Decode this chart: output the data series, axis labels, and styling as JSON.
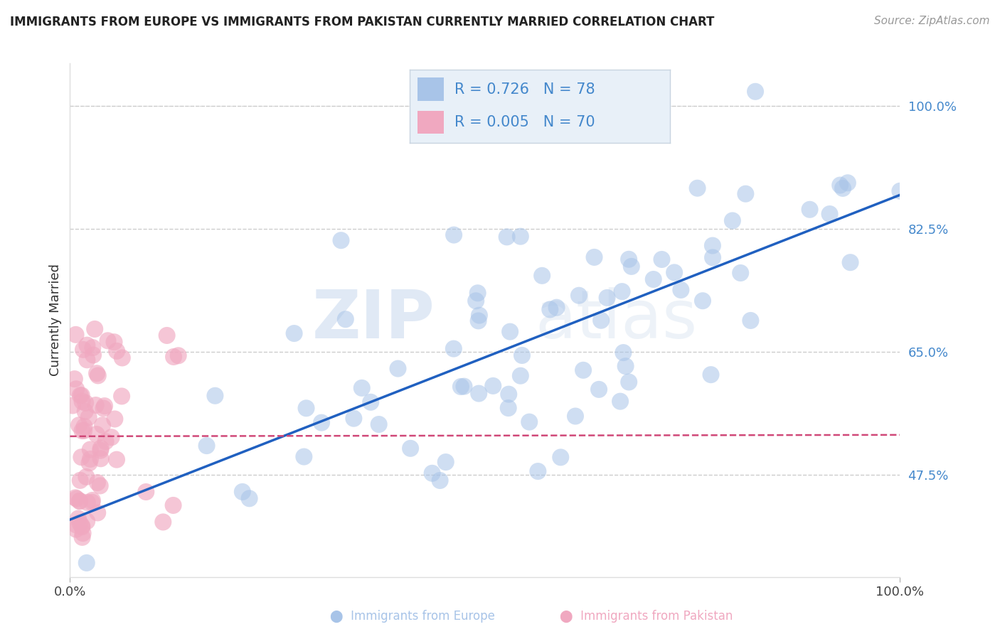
{
  "title": "IMMIGRANTS FROM EUROPE VS IMMIGRANTS FROM PAKISTAN CURRENTLY MARRIED CORRELATION CHART",
  "source": "Source: ZipAtlas.com",
  "ylabel": "Currently Married",
  "yticks_pct": [
    47.5,
    65.0,
    82.5,
    100.0
  ],
  "xlim": [
    0.0,
    1.0
  ],
  "ylim": [
    0.33,
    1.06
  ],
  "europe_R": 0.726,
  "europe_N": 78,
  "pakistan_R": 0.005,
  "pakistan_N": 70,
  "europe_color": "#a8c4e8",
  "pakistan_color": "#f0a8c0",
  "europe_line_color": "#2060c0",
  "pakistan_line_color": "#d04878",
  "watermark_zip": "ZIP",
  "watermark_atlas": "atlas",
  "background_color": "#ffffff",
  "grid_color": "#cccccc",
  "legend_bg_color": "#e8f0f8",
  "legend_border_color": "#c8d4e0",
  "tick_label_color": "#4488cc",
  "title_color": "#222222",
  "source_color": "#999999"
}
